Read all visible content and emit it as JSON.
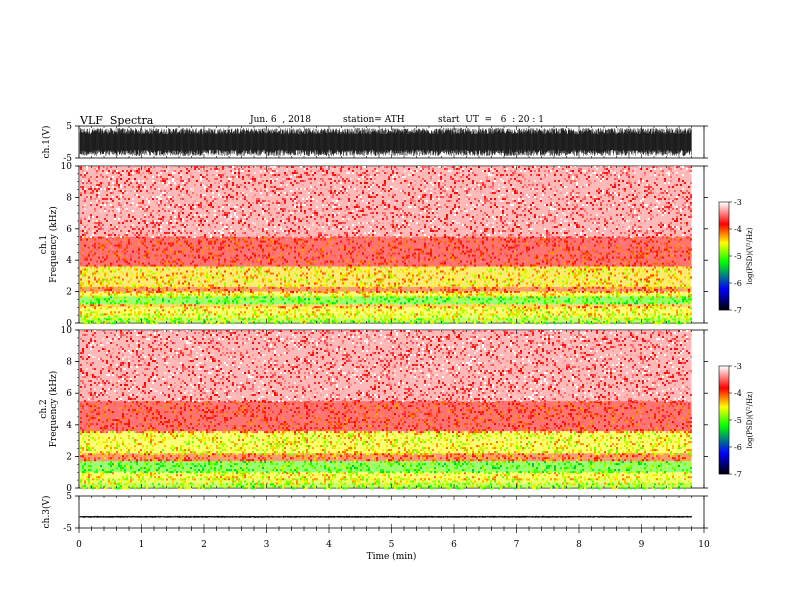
{
  "header": {
    "title": "VLF  Spectra",
    "date": "Jun. 6  , 2018",
    "station": "station= ATH",
    "start": "start  UT  =   6  : 20 : 1"
  },
  "chart_data": [
    {
      "type": "line",
      "panel": "ch1-waveform",
      "ylabel": "ch.1(V)",
      "ylim": [
        -5,
        5
      ],
      "yticks": [
        "5",
        "-5"
      ],
      "xlim": [
        0,
        10
      ],
      "amplitude_envelope": [
        -4.4,
        4.4
      ],
      "color": "#000000"
    },
    {
      "type": "heatmap",
      "panel": "ch1-spectrogram",
      "ylabel": "ch.1\nFrequency (kHz)",
      "ylim": [
        0,
        10
      ],
      "yticks": [
        "0",
        "2",
        "4",
        "6",
        "8",
        "10"
      ],
      "xlim": [
        0,
        9.8
      ],
      "bands_khz_log_psd": [
        {
          "from": 0.0,
          "to": 0.3,
          "value": -4.8
        },
        {
          "from": 0.3,
          "to": 0.6,
          "value": -4.6
        },
        {
          "from": 0.6,
          "to": 1.0,
          "value": -4.5
        },
        {
          "from": 1.0,
          "to": 1.2,
          "value": -4.3
        },
        {
          "from": 1.2,
          "to": 1.7,
          "value": -5.0
        },
        {
          "from": 1.7,
          "to": 2.0,
          "value": -4.5
        },
        {
          "from": 2.0,
          "to": 2.3,
          "value": -4.0
        },
        {
          "from": 2.3,
          "to": 3.6,
          "value": -4.4
        },
        {
          "from": 3.6,
          "to": 5.5,
          "value": -3.8
        },
        {
          "from": 5.5,
          "to": 10.0,
          "value": -3.4
        }
      ],
      "colorbar": {
        "label": "log(PSD)(V²/Hz)",
        "ticks": [
          "-3",
          "-4",
          "-5",
          "-6",
          "-7"
        ],
        "range": [
          -7,
          -3
        ]
      }
    },
    {
      "type": "heatmap",
      "panel": "ch2-spectrogram",
      "ylabel": "ch.2\nFrequency (kHz)",
      "ylim": [
        0,
        10
      ],
      "yticks": [
        "0",
        "2",
        "4",
        "6",
        "8",
        "10"
      ],
      "xlim": [
        0,
        9.8
      ],
      "bands_khz_log_psd": [
        {
          "from": 0.0,
          "to": 0.3,
          "value": -4.8
        },
        {
          "from": 0.3,
          "to": 0.6,
          "value": -4.6
        },
        {
          "from": 0.6,
          "to": 1.0,
          "value": -4.5
        },
        {
          "from": 1.0,
          "to": 1.7,
          "value": -5.0
        },
        {
          "from": 1.7,
          "to": 2.2,
          "value": -4.0
        },
        {
          "from": 2.2,
          "to": 3.6,
          "value": -4.5
        },
        {
          "from": 3.6,
          "to": 5.5,
          "value": -3.8
        },
        {
          "from": 5.5,
          "to": 10.0,
          "value": -3.4
        }
      ],
      "colorbar": {
        "label": "log(PSD)(V²/Hz)",
        "ticks": [
          "-3",
          "-4",
          "-5",
          "-6",
          "-7"
        ],
        "range": [
          -7,
          -3
        ]
      }
    },
    {
      "type": "line",
      "panel": "ch3-waveform",
      "ylabel": "ch.3(V)",
      "ylim": [
        -5,
        5
      ],
      "yticks": [
        "5",
        "-5"
      ],
      "xlim": [
        0,
        10
      ],
      "amplitude_envelope": [
        -0.3,
        0.3
      ],
      "offset": -1.5,
      "color": "#000000"
    }
  ],
  "xaxis": {
    "label": "Time  (min)",
    "ticks": [
      "0",
      "1",
      "2",
      "3",
      "4",
      "5",
      "6",
      "7",
      "8",
      "9",
      "10"
    ],
    "range": [
      0,
      10
    ]
  },
  "colors": {
    "palette": [
      "#000000",
      "#0000ff",
      "#00ff00",
      "#ffff00",
      "#ff0000",
      "#ffffff"
    ]
  }
}
